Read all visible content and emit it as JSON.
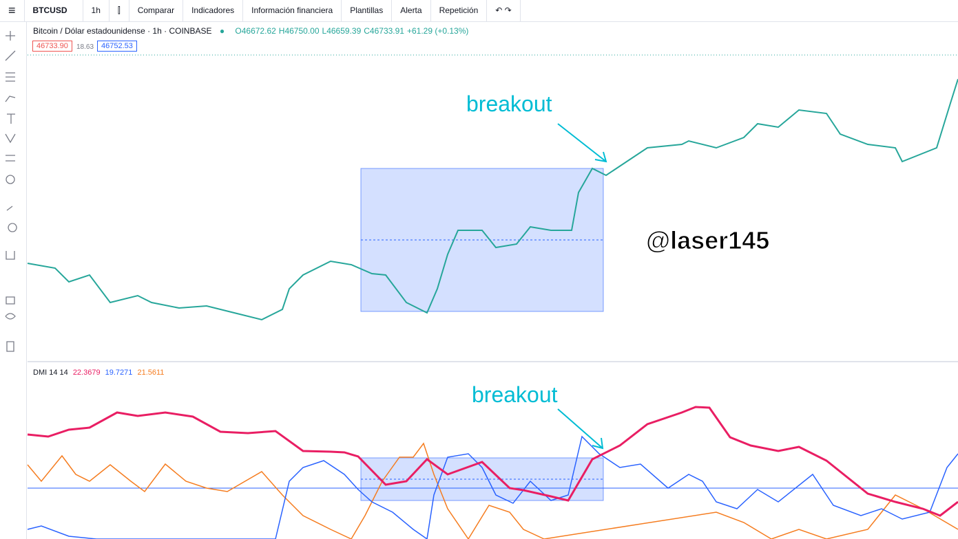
{
  "toolbar": {
    "symbol": "BTCUSD",
    "interval": "1h",
    "items": [
      "Comparar",
      "Indicadores",
      "Información financiera",
      "Plantillas",
      "Alerta",
      "Repetición"
    ]
  },
  "legend": {
    "title": "Bitcoin / Dólar estadounidense · 1h · COINBASE",
    "ohlc": [
      "O46672.62",
      "H46750.00",
      "L46659.39",
      "C46733.91",
      "+61.29 (+0.13%)"
    ]
  },
  "prices": {
    "bid": "46733.90",
    "spread": "18.63",
    "ask": "46752.53"
  },
  "annotations": {
    "breakout_price": "breakout",
    "watermark": "@laser145",
    "breakout_dmi": "breakout"
  },
  "dmi": {
    "name": "DMI 14 14",
    "values": [
      "22.3679",
      "19.7271",
      "21.5611"
    ]
  }
}
